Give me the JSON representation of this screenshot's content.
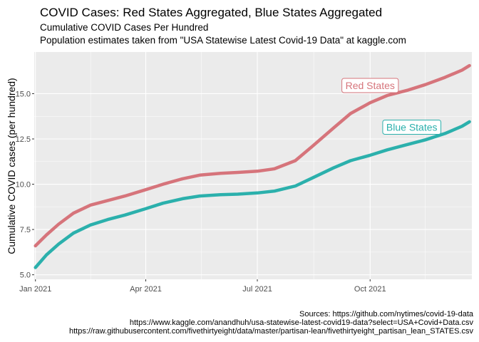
{
  "chart_data": {
    "type": "line",
    "title": "COVID Cases: Red States Aggregated, Blue States Aggregated",
    "subtitle": [
      "Cumulative COVID Cases Per Hundred",
      "Population estimates taken from \"USA Statewise Latest Covid-19 Data\" at kaggle.com"
    ],
    "ylabel": "Cumulative COVID cases (per hundred)",
    "xlabel": "",
    "xlim": [
      "2020-12-31",
      "2021-12-23"
    ],
    "ylim": [
      4.75,
      17.3
    ],
    "x_ticks": [
      {
        "date": "2021-01-01",
        "label": "Jan 2021"
      },
      {
        "date": "2021-04-01",
        "label": "Apr 2021"
      },
      {
        "date": "2021-07-01",
        "label": "Jul 2021"
      },
      {
        "date": "2021-10-01",
        "label": "Oct 2021"
      }
    ],
    "y_ticks": [
      {
        "value": 5.0,
        "label": "5.0"
      },
      {
        "value": 7.5,
        "label": "7.5"
      },
      {
        "value": 10.0,
        "label": "10.0"
      },
      {
        "value": 12.5,
        "label": "12.5"
      },
      {
        "value": 15.0,
        "label": "15.0"
      }
    ],
    "grid": true,
    "legend": "none",
    "series": [
      {
        "name": "Red States",
        "color": "#d6747b",
        "label_anchor": {
          "date": "2021-10-01",
          "value": 15.45
        },
        "points": [
          [
            "2021-01-01",
            6.6
          ],
          [
            "2021-01-10",
            7.2
          ],
          [
            "2021-01-20",
            7.8
          ],
          [
            "2021-02-01",
            8.4
          ],
          [
            "2021-02-15",
            8.85
          ],
          [
            "2021-03-01",
            9.1
          ],
          [
            "2021-03-15",
            9.35
          ],
          [
            "2021-04-01",
            9.7
          ],
          [
            "2021-04-15",
            10.0
          ],
          [
            "2021-05-01",
            10.3
          ],
          [
            "2021-05-15",
            10.5
          ],
          [
            "2021-06-01",
            10.6
          ],
          [
            "2021-06-15",
            10.65
          ],
          [
            "2021-07-01",
            10.72
          ],
          [
            "2021-07-15",
            10.85
          ],
          [
            "2021-08-01",
            11.3
          ],
          [
            "2021-08-15",
            12.1
          ],
          [
            "2021-09-01",
            13.1
          ],
          [
            "2021-09-15",
            13.9
          ],
          [
            "2021-10-01",
            14.5
          ],
          [
            "2021-10-15",
            14.9
          ],
          [
            "2021-11-01",
            15.2
          ],
          [
            "2021-11-15",
            15.5
          ],
          [
            "2021-12-01",
            15.9
          ],
          [
            "2021-12-15",
            16.3
          ],
          [
            "2021-12-21",
            16.55
          ]
        ]
      },
      {
        "name": "Blue States",
        "color": "#2bb0ac",
        "label_anchor": {
          "date": "2021-11-04",
          "value": 13.15
        },
        "points": [
          [
            "2021-01-01",
            5.4
          ],
          [
            "2021-01-10",
            6.1
          ],
          [
            "2021-01-20",
            6.7
          ],
          [
            "2021-02-01",
            7.3
          ],
          [
            "2021-02-15",
            7.75
          ],
          [
            "2021-03-01",
            8.05
          ],
          [
            "2021-03-15",
            8.3
          ],
          [
            "2021-04-01",
            8.65
          ],
          [
            "2021-04-15",
            8.95
          ],
          [
            "2021-05-01",
            9.2
          ],
          [
            "2021-05-15",
            9.35
          ],
          [
            "2021-06-01",
            9.42
          ],
          [
            "2021-06-15",
            9.45
          ],
          [
            "2021-07-01",
            9.52
          ],
          [
            "2021-07-15",
            9.62
          ],
          [
            "2021-08-01",
            9.9
          ],
          [
            "2021-08-15",
            10.35
          ],
          [
            "2021-09-01",
            10.9
          ],
          [
            "2021-09-15",
            11.3
          ],
          [
            "2021-10-01",
            11.6
          ],
          [
            "2021-10-15",
            11.9
          ],
          [
            "2021-11-01",
            12.2
          ],
          [
            "2021-11-15",
            12.45
          ],
          [
            "2021-12-01",
            12.8
          ],
          [
            "2021-12-15",
            13.2
          ],
          [
            "2021-12-21",
            13.45
          ]
        ]
      }
    ],
    "caption": [
      "Sources: https://github.com/nytimes/covid-19-data",
      "https://www.kaggle.com/anandhuh/usa-statewise-latest-covid19-data?select=USA+Covid+Data.csv",
      "https://raw.githubusercontent.com/fivethirtyeight/data/master/partisan-lean/fivethirtyeight_partisan_lean_STATES.csv"
    ],
    "panel_background": "#ebebeb",
    "grid_color": "#ffffff"
  }
}
